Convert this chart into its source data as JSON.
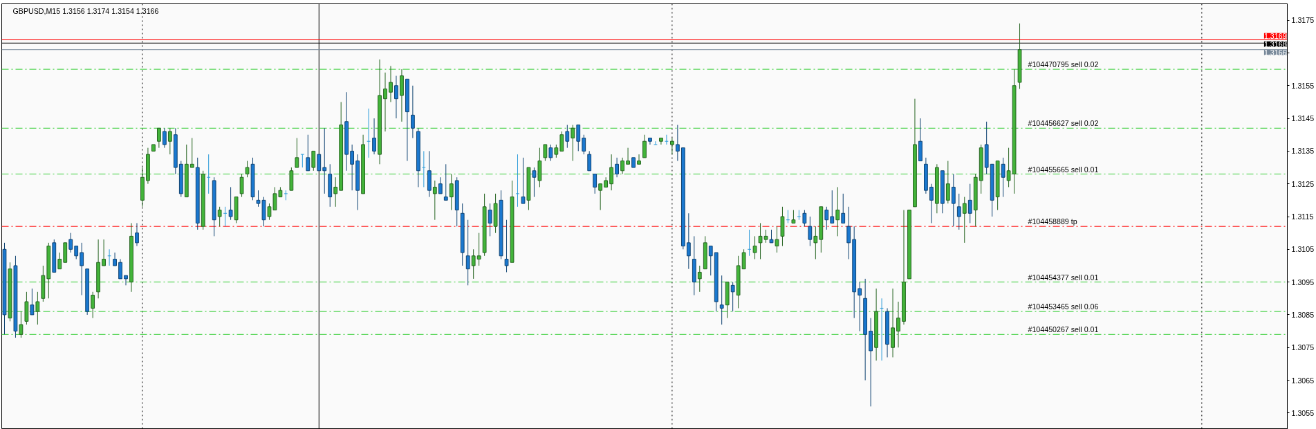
{
  "chart_data": {
    "type": "candlestick",
    "title": "GBPUSD,M15 1.3156 1.3174 1.3154 1.3166",
    "categories": [
      null,
      null,
      null,
      null,
      null,
      null,
      null,
      null,
      null,
      null,
      null,
      null,
      null,
      null,
      null,
      null,
      null,
      null,
      null,
      null,
      null,
      null,
      null,
      null,
      null,
      null,
      null,
      null,
      null,
      null,
      null,
      null,
      null,
      null,
      null,
      null,
      null,
      null,
      null,
      null,
      null,
      null,
      null,
      null,
      null,
      null,
      null,
      null,
      null,
      null,
      null,
      null,
      null,
      null,
      null,
      null,
      null,
      null,
      null,
      null,
      null,
      null,
      null,
      null,
      null,
      null,
      null,
      null,
      null,
      null,
      null,
      null,
      null,
      null,
      null,
      null,
      null,
      null,
      null,
      null,
      null,
      null,
      null,
      null,
      null,
      null,
      null,
      null,
      null,
      null,
      null,
      null,
      null,
      null,
      null,
      null,
      null,
      null,
      null,
      null,
      null,
      null,
      null,
      null,
      null,
      null,
      null,
      null,
      null,
      null,
      null,
      null,
      null,
      null,
      null,
      null,
      null,
      null,
      null,
      null,
      null,
      null,
      null,
      null,
      null,
      null,
      null,
      null,
      null,
      null,
      null,
      null,
      null,
      null,
      null,
      null,
      null,
      null,
      null,
      null,
      null,
      null,
      null,
      null,
      null,
      null,
      null,
      null,
      null,
      null,
      null,
      null,
      null,
      null,
      null,
      null,
      null,
      null,
      null,
      null,
      null,
      null,
      null,
      null,
      null,
      null,
      null,
      null,
      null,
      null,
      null,
      null,
      null,
      null,
      null,
      null,
      null,
      null,
      null,
      null,
      null,
      null,
      null,
      null,
      null,
      null,
      null,
      null,
      null,
      null,
      null,
      null,
      null,
      null,
      null,
      null,
      null,
      null,
      null,
      null,
      null,
      null,
      null,
      null,
      null,
      null,
      null,
      null,
      null,
      null,
      null,
      null,
      null,
      null,
      null,
      null,
      null,
      null,
      null,
      null,
      null,
      null,
      null,
      null,
      null,
      null,
      null,
      null,
      null,
      null,
      null,
      null,
      null
    ],
    "ohlc": [
      [
        1.3105,
        1.3107,
        1.3079,
        1.3085
      ],
      [
        1.3084,
        1.3101,
        1.3083,
        1.3099
      ],
      [
        1.31,
        1.3103,
        1.3078,
        1.308
      ],
      [
        1.3079,
        1.3086,
        1.3078,
        1.3082
      ],
      [
        1.3083,
        1.3092,
        1.3082,
        1.3089
      ],
      [
        1.3088,
        1.3093,
        1.3085,
        1.3085
      ],
      [
        1.3086,
        1.3092,
        1.3082,
        1.3089
      ],
      [
        1.309,
        1.31,
        1.3089,
        1.3097
      ],
      [
        1.3096,
        1.3107,
        1.309,
        1.3106
      ],
      [
        1.3107,
        1.3108,
        1.3098,
        1.3098
      ],
      [
        1.3099,
        1.3104,
        1.3099,
        1.3102
      ],
      [
        1.3101,
        1.3107,
        1.3101,
        1.3107
      ],
      [
        1.3108,
        1.311,
        1.3104,
        1.3105
      ],
      [
        1.3106,
        1.3106,
        1.3102,
        1.3103
      ],
      [
        1.3104,
        1.3107,
        1.3091,
        1.31
      ],
      [
        1.3099,
        1.3099,
        1.3085,
        1.3086
      ],
      [
        1.3087,
        1.3092,
        1.3084,
        1.3091
      ],
      [
        1.3092,
        1.3108,
        1.309,
        1.3101
      ],
      [
        1.31,
        1.3108,
        1.31,
        1.3102
      ],
      [
        1.3103,
        1.3105,
        1.31,
        1.3103
      ],
      [
        1.3102,
        1.3104,
        1.31,
        1.31
      ],
      [
        1.3101,
        1.3102,
        1.3096,
        1.3096
      ],
      [
        1.3097,
        1.3097,
        1.3094,
        1.3096
      ],
      [
        1.3095,
        1.3113,
        1.3092,
        1.3109
      ],
      [
        1.311,
        1.3113,
        1.3106,
        1.3107
      ],
      [
        1.312,
        1.313,
        1.3118,
        1.3127
      ],
      [
        1.3126,
        1.3136,
        1.3125,
        1.3134
      ],
      [
        1.3135,
        1.3137,
        1.3135,
        1.3137
      ],
      [
        1.3138,
        1.3142,
        1.3136,
        1.3142
      ],
      [
        1.3141,
        1.3142,
        1.3136,
        1.3137
      ],
      [
        1.3138,
        1.3142,
        1.3134,
        1.3141
      ],
      [
        1.314,
        1.3142,
        1.3128,
        1.313
      ],
      [
        1.3131,
        1.3132,
        1.3121,
        1.3122
      ],
      [
        1.3121,
        1.3137,
        1.3121,
        1.3131
      ],
      [
        1.313,
        1.3139,
        1.313,
        1.3131
      ],
      [
        1.313,
        1.3133,
        1.3111,
        1.3113
      ],
      [
        1.3112,
        1.3129,
        1.3111,
        1.3128
      ],
      [
        1.3127,
        1.3134,
        1.3122,
        1.3127
      ],
      [
        1.3126,
        1.3127,
        1.3109,
        1.3114
      ],
      [
        1.3115,
        1.3118,
        1.3112,
        1.3117
      ],
      [
        1.3116,
        1.3118,
        1.3112,
        1.3116
      ],
      [
        1.3117,
        1.3124,
        1.3114,
        1.3115
      ],
      [
        1.3114,
        1.3121,
        1.3113,
        1.3121
      ],
      [
        1.3122,
        1.3128,
        1.3121,
        1.3127
      ],
      [
        1.3128,
        1.3132,
        1.3127,
        1.313
      ],
      [
        1.3131,
        1.3133,
        1.312,
        1.3121
      ],
      [
        1.312,
        1.3123,
        1.3118,
        1.3119
      ],
      [
        1.312,
        1.3121,
        1.3112,
        1.3114
      ],
      [
        1.3115,
        1.3119,
        1.3114,
        1.3118
      ],
      [
        1.3117,
        1.3124,
        1.3117,
        1.3122
      ],
      [
        1.3121,
        1.3124,
        1.3121,
        1.3123
      ],
      [
        1.3122,
        1.3123,
        1.312,
        1.3122
      ],
      [
        1.3123,
        1.313,
        1.3123,
        1.3129
      ],
      [
        1.313,
        1.3139,
        1.313,
        1.3133
      ],
      [
        1.3134,
        1.3134,
        1.313,
        1.3134
      ],
      [
        1.3133,
        1.314,
        1.3129,
        1.3129
      ],
      [
        1.313,
        1.3135,
        1.3129,
        1.3135
      ],
      [
        1.3134,
        1.3134,
        1.3129,
        1.3129
      ],
      [
        1.313,
        1.3142,
        1.3122,
        1.3129
      ],
      [
        1.3128,
        1.3131,
        1.3118,
        1.3121
      ],
      [
        1.3122,
        1.3127,
        1.3118,
        1.3124
      ],
      [
        1.3123,
        1.315,
        1.3123,
        1.3143
      ],
      [
        1.3144,
        1.3153,
        1.3129,
        1.3134
      ],
      [
        1.3135,
        1.3137,
        1.3123,
        1.3131
      ],
      [
        1.3132,
        1.3134,
        1.3117,
        1.3123
      ],
      [
        1.3122,
        1.314,
        1.3122,
        1.3137
      ],
      [
        1.3138,
        1.3148,
        1.3133,
        1.3138
      ],
      [
        1.3139,
        1.3145,
        1.3134,
        1.3135
      ],
      [
        1.3134,
        1.3163,
        1.3131,
        1.3152
      ],
      [
        1.3151,
        1.3159,
        1.3141,
        1.3154
      ],
      [
        1.3153,
        1.3161,
        1.315,
        1.3156
      ],
      [
        1.3155,
        1.3158,
        1.3145,
        1.3151
      ],
      [
        1.3152,
        1.316,
        1.3144,
        1.3158
      ],
      [
        1.3157,
        1.3157,
        1.3132,
        1.3147
      ],
      [
        1.3146,
        1.3155,
        1.3139,
        1.3142
      ],
      [
        1.3141,
        1.3142,
        1.3124,
        1.3129
      ],
      [
        1.313,
        1.3135,
        1.3124,
        1.313
      ],
      [
        1.3129,
        1.3135,
        1.3121,
        1.3123
      ],
      [
        1.3122,
        1.3126,
        1.3114,
        1.3124
      ],
      [
        1.3125,
        1.3127,
        1.3122,
        1.3122
      ],
      [
        1.3121,
        1.3131,
        1.312,
        1.312
      ],
      [
        1.3121,
        1.3128,
        1.3117,
        1.3125
      ],
      [
        1.3126,
        1.3127,
        1.3112,
        1.3117
      ],
      [
        1.3116,
        1.3119,
        1.31,
        1.3104
      ],
      [
        1.3103,
        1.3114,
        1.3094,
        1.3099
      ],
      [
        1.31,
        1.3105,
        1.3096,
        1.3103
      ],
      [
        1.3102,
        1.311,
        1.31,
        1.3103
      ],
      [
        1.3104,
        1.3122,
        1.3103,
        1.3118
      ],
      [
        1.3117,
        1.3119,
        1.3109,
        1.3113
      ],
      [
        1.3112,
        1.3122,
        1.311,
        1.3119
      ],
      [
        1.312,
        1.3123,
        1.3102,
        1.3103
      ],
      [
        1.3102,
        1.3114,
        1.3098,
        1.31
      ],
      [
        1.3101,
        1.3126,
        1.3101,
        1.3121
      ],
      [
        1.3122,
        1.3134,
        1.3118,
        1.3122
      ],
      [
        1.3121,
        1.3133,
        1.3119,
        1.3119
      ],
      [
        1.312,
        1.313,
        1.3117,
        1.313
      ],
      [
        1.3129,
        1.313,
        1.3121,
        1.3127
      ],
      [
        1.3126,
        1.3136,
        1.3124,
        1.3132
      ],
      [
        1.3133,
        1.3137,
        1.3132,
        1.3137
      ],
      [
        1.3136,
        1.3137,
        1.3132,
        1.3133
      ],
      [
        1.3134,
        1.3137,
        1.3133,
        1.3136
      ],
      [
        1.3135,
        1.3141,
        1.3135,
        1.314
      ],
      [
        1.3141,
        1.3143,
        1.3136,
        1.3138
      ],
      [
        1.3139,
        1.3143,
        1.3132,
        1.3142
      ],
      [
        1.3143,
        1.3143,
        1.3135,
        1.3138
      ],
      [
        1.3139,
        1.314,
        1.3134,
        1.3135
      ],
      [
        1.3134,
        1.3135,
        1.3129,
        1.3129
      ],
      [
        1.3128,
        1.3128,
        1.3122,
        1.3124
      ],
      [
        1.3123,
        1.3125,
        1.3117,
        1.3125
      ],
      [
        1.3124,
        1.3127,
        1.3124,
        1.3126
      ],
      [
        1.3125,
        1.3134,
        1.3123,
        1.313
      ],
      [
        1.3131,
        1.3133,
        1.3127,
        1.3128
      ],
      [
        1.3129,
        1.3133,
        1.3128,
        1.3132
      ],
      [
        1.3131,
        1.3136,
        1.3131,
        1.3132
      ],
      [
        1.3133,
        1.3133,
        1.313,
        1.313
      ],
      [
        1.3131,
        1.3134,
        1.3131,
        1.3132
      ],
      [
        1.3133,
        1.314,
        1.3133,
        1.3138
      ],
      [
        1.3139,
        1.3139,
        1.3137,
        1.3138
      ],
      [
        1.3137,
        1.3138,
        1.3137,
        1.3137
      ],
      [
        1.3138,
        1.3139,
        1.3137,
        1.3139
      ],
      [
        1.3138,
        1.314,
        1.3137,
        1.3138
      ],
      [
        1.3137,
        1.3139,
        1.3134,
        1.3138
      ],
      [
        1.3137,
        1.3143,
        1.3132,
        1.3135
      ],
      [
        1.3136,
        1.3136,
        1.3105,
        1.3106
      ],
      [
        1.3107,
        1.3116,
        1.3099,
        1.3103
      ],
      [
        1.3102,
        1.3109,
        1.3091,
        1.3095
      ],
      [
        1.3096,
        1.31,
        1.3092,
        1.3098
      ],
      [
        1.3099,
        1.3109,
        1.3099,
        1.3107
      ],
      [
        1.3106,
        1.3106,
        1.3097,
        1.3103
      ],
      [
        1.3104,
        1.3104,
        1.3086,
        1.3089
      ],
      [
        1.3088,
        1.3097,
        1.3082,
        1.3087
      ],
      [
        1.3088,
        1.3095,
        1.3084,
        1.3095
      ],
      [
        1.3094,
        1.3095,
        1.3086,
        1.3092
      ],
      [
        1.3091,
        1.3103,
        1.3087,
        1.31
      ],
      [
        1.3099,
        1.3105,
        1.3099,
        1.3104
      ],
      [
        1.3105,
        1.3111,
        1.3103,
        1.3105
      ],
      [
        1.3104,
        1.3109,
        1.3102,
        1.3106
      ],
      [
        1.3107,
        1.3113,
        1.3102,
        1.3109
      ],
      [
        1.3108,
        1.3111,
        1.3107,
        1.3109
      ],
      [
        1.3108,
        1.3111,
        1.3107,
        1.3107
      ],
      [
        1.3106,
        1.3112,
        1.3104,
        1.3108
      ],
      [
        1.3109,
        1.3118,
        1.3106,
        1.3115
      ],
      [
        1.3114,
        1.3117,
        1.3113,
        1.3114
      ],
      [
        1.3113,
        1.3117,
        1.3113,
        1.3114
      ],
      [
        1.3115,
        1.3117,
        1.3114,
        1.3115
      ],
      [
        1.3116,
        1.3117,
        1.3112,
        1.3113
      ],
      [
        1.3112,
        1.3115,
        1.3106,
        1.3108
      ],
      [
        1.3107,
        1.3112,
        1.3102,
        1.3109
      ],
      [
        1.3108,
        1.3118,
        1.3104,
        1.3118
      ],
      [
        1.3117,
        1.3118,
        1.3111,
        1.3114
      ],
      [
        1.3115,
        1.3123,
        1.3113,
        1.3113
      ],
      [
        1.3114,
        1.3124,
        1.3109,
        1.3117
      ],
      [
        1.3116,
        1.3122,
        1.3113,
        1.3113
      ],
      [
        1.3112,
        1.3118,
        1.3102,
        1.3107
      ],
      [
        1.3108,
        1.3112,
        1.3084,
        1.3092
      ],
      [
        1.3093,
        1.3095,
        1.308,
        1.3091
      ],
      [
        1.309,
        1.3096,
        1.3065,
        1.3079
      ],
      [
        1.308,
        1.3084,
        1.3057,
        1.3074
      ],
      [
        1.3075,
        1.3093,
        1.3071,
        1.3086
      ],
      [
        1.3087,
        1.309,
        1.3071,
        1.3087
      ],
      [
        1.3086,
        1.3087,
        1.3072,
        1.3076
      ],
      [
        1.3075,
        1.3093,
        1.3072,
        1.3081
      ],
      [
        1.308,
        1.3089,
        1.3075,
        1.3084
      ],
      [
        1.3083,
        1.3117,
        1.3082,
        1.3095
      ],
      [
        1.3096,
        1.3117,
        1.3096,
        1.3117
      ],
      [
        1.3118,
        1.3151,
        1.3118,
        1.3137
      ],
      [
        1.3138,
        1.3145,
        1.3132,
        1.3132
      ],
      [
        1.3131,
        1.3133,
        1.3122,
        1.3123
      ],
      [
        1.3124,
        1.3125,
        1.3113,
        1.312
      ],
      [
        1.3119,
        1.3131,
        1.3116,
        1.313
      ],
      [
        1.3129,
        1.3129,
        1.3116,
        1.3119
      ],
      [
        1.312,
        1.3132,
        1.3119,
        1.3125
      ],
      [
        1.3124,
        1.3128,
        1.3112,
        1.3119
      ],
      [
        1.3118,
        1.3122,
        1.3111,
        1.3115
      ],
      [
        1.3116,
        1.3121,
        1.3107,
        1.3119
      ],
      [
        1.312,
        1.3125,
        1.3113,
        1.3116
      ],
      [
        1.3117,
        1.3128,
        1.3112,
        1.3127
      ],
      [
        1.3126,
        1.3137,
        1.3122,
        1.3136
      ],
      [
        1.3137,
        1.3144,
        1.3128,
        1.313
      ],
      [
        1.3131,
        1.3131,
        1.3115,
        1.312
      ],
      [
        1.3121,
        1.3132,
        1.3117,
        1.3132
      ],
      [
        1.3131,
        1.3133,
        1.3121,
        1.3127
      ],
      [
        1.3126,
        1.3136,
        1.3124,
        1.3129
      ],
      [
        1.3128,
        1.316,
        1.3122,
        1.3155
      ],
      [
        1.3156,
        1.3174,
        1.3154,
        1.3166
      ],
      null,
      null,
      null,
      null,
      null,
      null,
      null,
      null,
      null,
      null,
      null,
      null,
      null,
      null,
      null,
      null,
      null,
      null,
      null,
      null,
      null,
      null,
      null,
      null,
      null,
      null,
      null,
      null,
      null,
      null,
      null,
      null,
      null,
      null,
      null,
      null,
      null,
      null,
      null,
      null,
      null,
      null,
      null,
      null,
      null,
      null,
      null,
      null
    ],
    "colors": [
      "#1a78cf",
      "#43b43a",
      "#1a78cf",
      "#43b43a",
      "#43b43a",
      "#1a78cf",
      "#43b43a",
      "#43b43a",
      "#43b43a",
      "#1a78cf",
      "#43b43a",
      "#43b43a",
      "#1a78cf",
      "#1a78cf",
      "#1a78cf",
      "#1a78cf",
      "#43b43a",
      "#43b43a",
      "#43b43a",
      "#2b9ad8",
      "#1a78cf",
      "#1a78cf",
      "#1a78cf",
      "#43b43a",
      "#1a78cf",
      "#43b43a",
      "#43b43a",
      "#43b43a",
      "#43b43a",
      "#1a78cf",
      "#43b43a",
      "#1a78cf",
      "#1a78cf",
      "#43b43a",
      "#43b43a",
      "#1a78cf",
      "#43b43a",
      "#2b9ad8",
      "#1a78cf",
      "#43b43a",
      "#2b9ad8",
      "#1a78cf",
      "#43b43a",
      "#43b43a",
      "#43b43a",
      "#1a78cf",
      "#1a78cf",
      "#1a78cf",
      "#43b43a",
      "#43b43a",
      "#43b43a",
      "#2b9ad8",
      "#43b43a",
      "#43b43a",
      "#2b9ad8",
      "#1a78cf",
      "#43b43a",
      "#1a78cf",
      "#1a78cf",
      "#1a78cf",
      "#43b43a",
      "#43b43a",
      "#1a78cf",
      "#1a78cf",
      "#1a78cf",
      "#43b43a",
      "#2b9ad8",
      "#1a78cf",
      "#43b43a",
      "#43b43a",
      "#43b43a",
      "#1a78cf",
      "#43b43a",
      "#1a78cf",
      "#1a78cf",
      "#1a78cf",
      "#2b9ad8",
      "#1a78cf",
      "#43b43a",
      "#1a78cf",
      "#1a78cf",
      "#43b43a",
      "#1a78cf",
      "#1a78cf",
      "#1a78cf",
      "#43b43a",
      "#43b43a",
      "#43b43a",
      "#1a78cf",
      "#43b43a",
      "#1a78cf",
      "#1a78cf",
      "#43b43a",
      "#2b9ad8",
      "#1a78cf",
      "#43b43a",
      "#1a78cf",
      "#43b43a",
      "#43b43a",
      "#1a78cf",
      "#43b43a",
      "#43b43a",
      "#1a78cf",
      "#43b43a",
      "#1a78cf",
      "#1a78cf",
      "#1a78cf",
      "#1a78cf",
      "#43b43a",
      "#43b43a",
      "#43b43a",
      "#1a78cf",
      "#43b43a",
      "#43b43a",
      "#1a78cf",
      "#43b43a",
      "#43b43a",
      "#1a78cf",
      "#2b9ad8",
      "#43b43a",
      "#2b9ad8",
      "#43b43a",
      "#1a78cf",
      "#1a78cf",
      "#1a78cf",
      "#1a78cf",
      "#43b43a",
      "#43b43a",
      "#1a78cf",
      "#1a78cf",
      "#1a78cf",
      "#43b43a",
      "#1a78cf",
      "#43b43a",
      "#43b43a",
      "#2b9ad8",
      "#43b43a",
      "#43b43a",
      "#43b43a",
      "#1a78cf",
      "#43b43a",
      "#43b43a",
      "#2b9ad8",
      "#43b43a",
      "#2b9ad8",
      "#1a78cf",
      "#1a78cf",
      "#43b43a",
      "#43b43a",
      "#1a78cf",
      "#1a78cf",
      "#43b43a",
      "#1a78cf",
      "#1a78cf",
      "#1a78cf",
      "#1a78cf",
      "#1a78cf",
      "#1a78cf",
      "#43b43a",
      "#2b9ad8",
      "#1a78cf",
      "#43b43a",
      "#43b43a",
      "#43b43a",
      "#43b43a",
      "#43b43a",
      "#1a78cf",
      "#1a78cf",
      "#1a78cf",
      "#43b43a",
      "#1a78cf",
      "#43b43a",
      "#1a78cf",
      "#1a78cf",
      "#43b43a",
      "#1a78cf",
      "#43b43a",
      "#43b43a",
      "#1a78cf",
      "#1a78cf",
      "#43b43a",
      "#1a78cf",
      "#43b43a",
      "#43b43a",
      "#43b43a",
      null,
      null,
      null,
      null,
      null,
      null,
      null,
      null,
      null,
      null,
      null,
      null,
      null,
      null,
      null,
      null,
      null,
      null,
      null,
      null,
      null,
      null,
      null,
      null,
      null,
      null,
      null,
      null,
      null,
      null,
      null,
      null,
      null,
      null,
      null,
      null,
      null,
      null,
      null,
      null,
      null,
      null,
      null,
      null,
      null,
      null,
      null,
      null
    ],
    "ylim": [
      1.305,
      1.318
    ],
    "yticks": [
      1.3055,
      1.3065,
      1.3075,
      1.3085,
      1.3095,
      1.3105,
      1.3115,
      1.3125,
      1.3135,
      1.3145,
      1.3155,
      {
        "value": 1.3165,
        "label": null
      },
      1.3175
    ],
    "tick_labels": "y",
    "ref_lines": [
      {
        "axis": "y",
        "value": 1.3169,
        "label": "1.3169",
        "color": "#ff0000",
        "line_style": "solid"
      },
      {
        "axis": "y",
        "value": 1.3168,
        "label": "1.3168",
        "color": "#000000",
        "line_style": "solid"
      },
      {
        "axis": "y",
        "value": 1.3166,
        "label": "1.3166",
        "color": "#778899",
        "line_style": "solid"
      },
      {
        "axis": "y",
        "value": 1.316,
        "label": "#104470795 sell 0.02",
        "color": "#32cd32",
        "line_style": "dashdot"
      },
      {
        "axis": "y",
        "value": 1.3142,
        "label": "#104456627 sell 0.02",
        "color": "#32cd32",
        "line_style": "dashdot"
      },
      {
        "axis": "y",
        "value": 1.3128,
        "label": "#104455665 sell 0.01",
        "color": "#32cd32",
        "line_style": "dashdot"
      },
      {
        "axis": "y",
        "value": 1.3112,
        "label": "#104458889 tp",
        "color": "#ff0000",
        "line_style": "dashdot"
      },
      {
        "axis": "y",
        "value": 1.3095,
        "label": "#104454377 sell 0.01",
        "color": "#32cd32",
        "line_style": "dashdot"
      },
      {
        "axis": "y",
        "value": 1.3086,
        "label": "#104453465 sell 0.06",
        "color": "#32cd32",
        "line_style": "dashdot"
      },
      {
        "axis": "y",
        "value": 1.3079,
        "label": "#104450267 sell 0.01",
        "color": "#32cd32",
        "line_style": "dashdot"
      }
    ]
  }
}
